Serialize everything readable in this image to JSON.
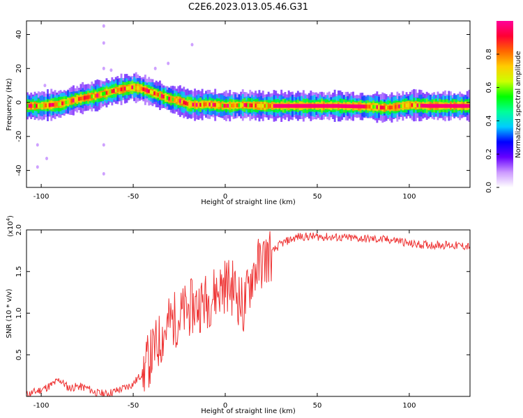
{
  "figure": {
    "title": "C2E6.2023.013.05.46.G31"
  },
  "chart_data": [
    {
      "type": "heatmap",
      "xlabel": "Height of straight line (km)",
      "ylabel": "Frequency (Hz)",
      "xlim": [
        -108,
        133
      ],
      "ylim": [
        -50,
        48
      ],
      "xticks": [
        -100,
        -50,
        0,
        50,
        100
      ],
      "yticks": [
        -40,
        -20,
        0,
        20,
        40
      ],
      "colorbar": {
        "label": "Normalized spectral amplitude",
        "range": [
          0,
          1
        ],
        "ticks": [
          "0.0",
          "0.2",
          "0.4",
          "0.6",
          "0.8"
        ],
        "tick_values": [
          0.0,
          0.2,
          0.4,
          0.6,
          0.8
        ],
        "colormap": [
          "#ffffff",
          "#cc99ff",
          "#6600ff",
          "#0000ff",
          "#00ccff",
          "#00ff99",
          "#00ff00",
          "#ccff00",
          "#ffcc00",
          "#ff6600",
          "#ff0033",
          "#ff0099"
        ]
      },
      "ridge": {
        "x": [
          -108,
          -100,
          -90,
          -80,
          -70,
          -60,
          -55,
          -50,
          -45,
          -40,
          -35,
          -30,
          -25,
          -20,
          -15,
          -10,
          -5,
          0,
          10,
          20,
          40,
          60,
          80,
          85,
          90,
          100,
          110,
          133
        ],
        "frequency": [
          -2,
          -2,
          -1,
          2,
          4,
          7,
          8,
          9,
          8,
          6,
          4,
          2,
          1,
          -1,
          -1.5,
          -1,
          -1.5,
          -2,
          -1.5,
          -2,
          -2,
          -2,
          -2.5,
          -3,
          -3,
          -1.5,
          -2,
          -2
        ]
      },
      "scatter_points": [
        {
          "x": -102,
          "frequency": -25
        },
        {
          "x": -102,
          "frequency": -38
        },
        {
          "x": -98,
          "frequency": 10
        },
        {
          "x": -97,
          "frequency": -33
        },
        {
          "x": -66,
          "frequency": 45
        },
        {
          "x": -66,
          "frequency": 35
        },
        {
          "x": -66,
          "frequency": 20
        },
        {
          "x": -66,
          "frequency": -25
        },
        {
          "x": -66,
          "frequency": -42
        },
        {
          "x": -38,
          "frequency": 20
        },
        {
          "x": -31,
          "frequency": 23
        },
        {
          "x": -18,
          "frequency": 34
        },
        {
          "x": -62,
          "frequency": 19
        }
      ]
    },
    {
      "type": "line",
      "xlabel": "Height of straight line (km)",
      "ylabel": "SNR (10 * v/v)",
      "scale_label": "(x10",
      "scale_exponent": "4",
      "scale_close": ")",
      "xlim": [
        -108,
        133
      ],
      "ylim": [
        0,
        2.0
      ],
      "xticks": [
        -100,
        -50,
        0,
        50,
        100
      ],
      "yticks": [
        0.5,
        1.0,
        1.5,
        2.0
      ],
      "yticklabels": [
        "0.5",
        "1.0",
        "1.5",
        "2.0"
      ],
      "series": [
        {
          "color": "#ee3333",
          "x": [
            -108,
            -100,
            -95,
            -90,
            -85,
            -80,
            -75,
            -70,
            -65,
            -60,
            -55,
            -50,
            -45,
            -40,
            -35,
            -30,
            -25,
            -20,
            -15,
            -10,
            -5,
            0,
            5,
            10,
            15,
            20,
            25,
            30,
            35,
            40,
            50,
            60,
            70,
            80,
            90,
            95,
            100,
            110,
            120,
            133
          ],
          "values": [
            0.02,
            0.08,
            0.13,
            0.2,
            0.1,
            0.12,
            0.1,
            0.04,
            0.03,
            0.06,
            0.1,
            0.15,
            0.28,
            0.5,
            0.7,
            0.9,
            0.95,
            1.05,
            1.1,
            1.15,
            1.25,
            1.35,
            1.3,
            1.05,
            1.5,
            1.62,
            1.72,
            1.83,
            1.88,
            1.92,
            1.92,
            1.91,
            1.9,
            1.89,
            1.88,
            1.87,
            1.83,
            1.82,
            1.82,
            1.8
          ]
        }
      ]
    }
  ]
}
